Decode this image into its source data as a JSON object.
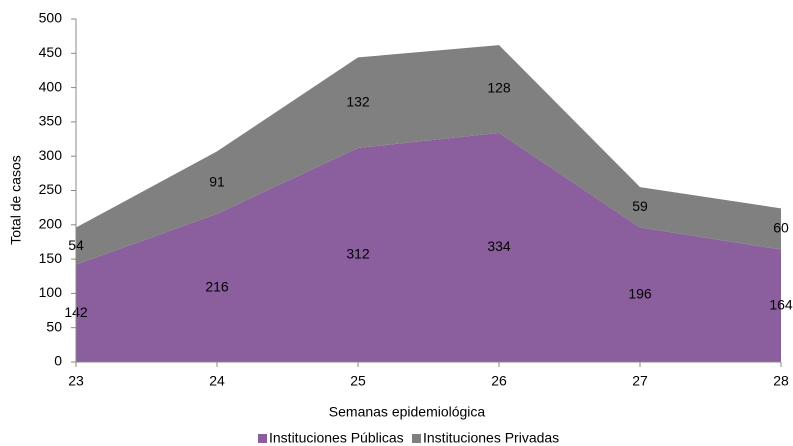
{
  "chart_data": {
    "type": "stacked-area",
    "x_label": "Semanas epidemiológica",
    "y_label": "Total de casos",
    "categories": [
      "23",
      "24",
      "25",
      "26",
      "27",
      "28"
    ],
    "series": [
      {
        "name": "Instituciones Públicas",
        "color": "#8b5f9d",
        "values": [
          142,
          216,
          312,
          334,
          196,
          164
        ]
      },
      {
        "name": "Instituciones Privadas",
        "color": "#808080",
        "values": [
          54,
          91,
          132,
          128,
          59,
          60
        ]
      }
    ],
    "ylim": [
      0,
      500
    ],
    "yticks": [
      0,
      50,
      100,
      150,
      200,
      250,
      300,
      350,
      400,
      450,
      500
    ],
    "legend": "bottom",
    "data_labels": true
  }
}
